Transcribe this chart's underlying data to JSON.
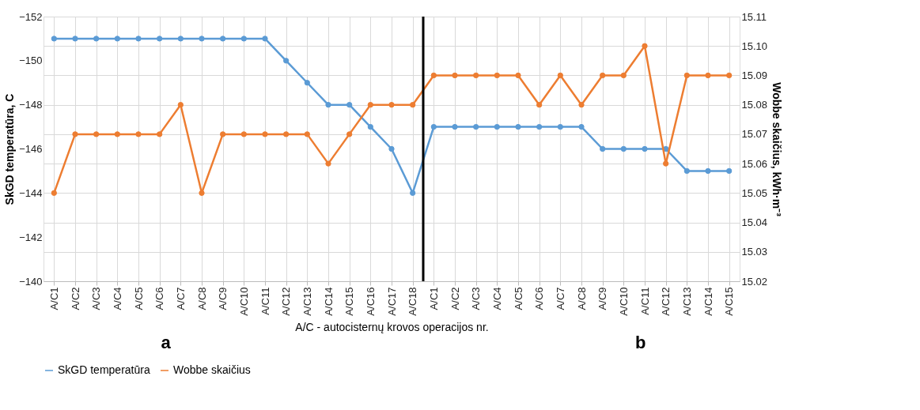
{
  "chart_data": {
    "type": "line",
    "categories": [
      "A/C1",
      "A/C2",
      "A/C3",
      "A/C4",
      "A/C5",
      "A/C6",
      "A/C7",
      "A/C8",
      "A/C9",
      "A/C10",
      "A/C11",
      "A/C12",
      "A/C13",
      "A/C14",
      "A/C15",
      "A/C16",
      "A/C17",
      "A/C18",
      "A/C1",
      "A/C2",
      "A/C3",
      "A/C4",
      "A/C5",
      "A/C6",
      "A/C7",
      "A/C8",
      "A/C9",
      "A/C10",
      "A/C11",
      "A/C12",
      "A/C13",
      "A/C14",
      "A/C15"
    ],
    "series": [
      {
        "name": "SkGD temperatūra",
        "color": "#5b9bd5",
        "values": [
          -151,
          -151,
          -151,
          -151,
          -151,
          -151,
          -151,
          -151,
          -151,
          -151,
          -151,
          -150,
          -149,
          -148,
          -148,
          -147,
          -146,
          -144,
          -147,
          -147,
          -147,
          -147,
          -147,
          -147,
          -147,
          -147,
          -146,
          -146,
          -146,
          -146,
          -145,
          -145,
          -145
        ]
      },
      {
        "name": "Wobbe skaičius",
        "color": "#ed7d31",
        "axis": "y2",
        "values": [
          15.05,
          15.07,
          15.07,
          15.07,
          15.07,
          15.07,
          15.08,
          15.05,
          15.07,
          15.07,
          15.07,
          15.07,
          15.07,
          15.06,
          15.07,
          15.08,
          15.08,
          15.08,
          15.09,
          15.09,
          15.09,
          15.09,
          15.09,
          15.08,
          15.09,
          15.08,
          15.09,
          15.09,
          15.1,
          15.06,
          15.09,
          15.09,
          15.09
        ]
      }
    ],
    "xlabel": "A/C - autocisternų krovos operacijos nr.",
    "ylabel": "SkGD temperatūra, C",
    "y2label": "Wobbe skaičius, kWh·m⁻³",
    "ylim": [
      -140,
      -152
    ],
    "yticks": [
      -140,
      -142,
      -144,
      -146,
      -148,
      -150,
      -152
    ],
    "y2lim": [
      15.02,
      15.11
    ],
    "y2ticks": [
      15.02,
      15.03,
      15.04,
      15.05,
      15.06,
      15.07,
      15.08,
      15.09,
      {
        "value": 15.1,
        "label": "15.10"
      },
      15.11
    ],
    "ref_lines": [
      {
        "axis": "x",
        "value": "A/C18",
        "color": "#000000"
      }
    ],
    "annotations": [
      "a",
      "b"
    ],
    "grid": true,
    "legend": "bottom",
    "marker": "circle",
    "line_style": "solid"
  }
}
